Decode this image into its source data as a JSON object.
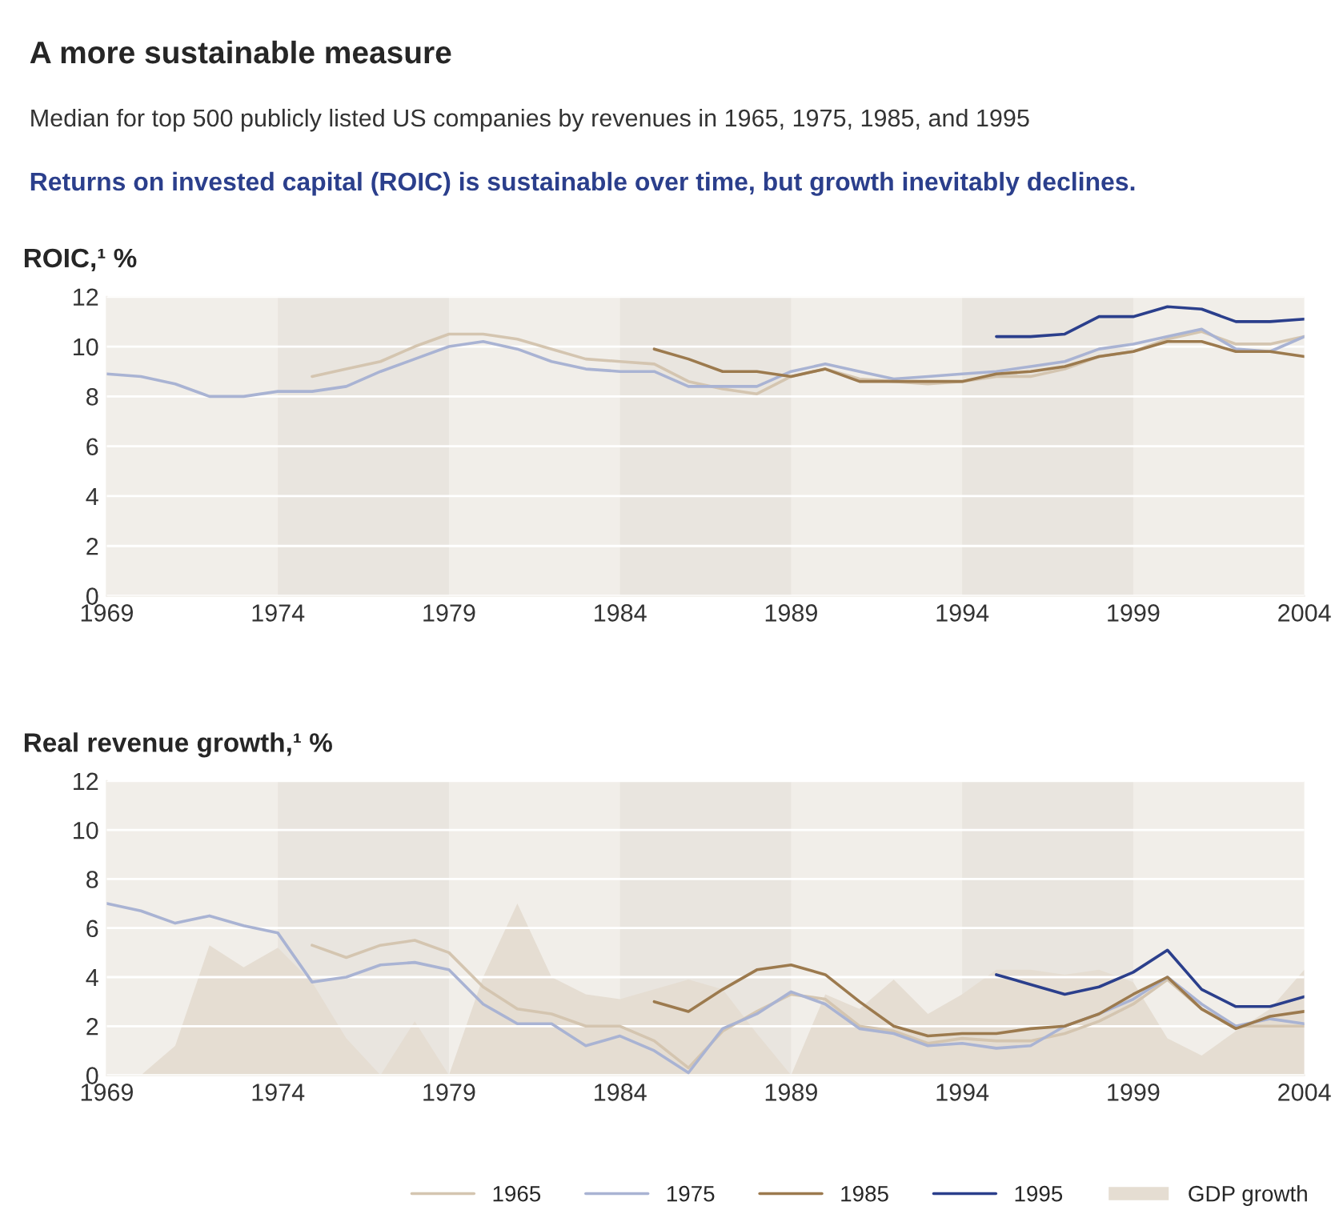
{
  "chart_data": [
    {
      "type": "line",
      "title": "A more sustainable measure",
      "subtitle": "Median for top 500 publicly listed US companies by revenues in 1965, 1975, 1985, and 1995",
      "annotations": [
        "Returns on invested capital (ROIC) is sustainable over time, but growth inevitably declines."
      ],
      "ylabel": "ROIC,¹ %",
      "xlim": [
        1969,
        2004
      ],
      "xticks": [
        1969,
        1974,
        1979,
        1984,
        1989,
        1994,
        1999,
        2004
      ],
      "ylim": [
        0,
        12
      ],
      "yticks": [
        0,
        2,
        4,
        6,
        8,
        10,
        12
      ],
      "grid": "y",
      "legend": "bottom right",
      "bands": [
        {
          "axis": "x",
          "from": 1974,
          "to": 1979,
          "color": "#e9e5df"
        },
        {
          "axis": "x",
          "from": 1984,
          "to": 1989,
          "color": "#e9e5df"
        },
        {
          "axis": "x",
          "from": 1994,
          "to": 1999,
          "color": "#e9e5df"
        }
      ],
      "series": [
        {
          "name": "1965",
          "color": "#d4c5b0",
          "x": [
            1975,
            1976,
            1977,
            1978,
            1979,
            1980,
            1981,
            1982,
            1983,
            1984,
            1985,
            1986,
            1987,
            1988,
            1989,
            1990,
            1991,
            1992,
            1993,
            1994,
            1995,
            1996,
            1997,
            1998,
            1999,
            2000,
            2001,
            2002,
            2003,
            2004
          ],
          "values": [
            8.8,
            9.1,
            9.4,
            10.0,
            10.5,
            10.5,
            10.3,
            9.9,
            9.5,
            9.4,
            9.3,
            8.6,
            8.3,
            8.1,
            8.8,
            9.1,
            8.7,
            8.6,
            8.5,
            8.6,
            8.8,
            8.8,
            9.1,
            9.6,
            9.8,
            10.3,
            10.6,
            10.1,
            10.1,
            10.4
          ]
        },
        {
          "name": "1975",
          "color": "#a9b3d3",
          "x": [
            1969,
            1970,
            1971,
            1972,
            1973,
            1974,
            1975,
            1976,
            1977,
            1978,
            1979,
            1980,
            1981,
            1982,
            1983,
            1984,
            1985,
            1986,
            1987,
            1988,
            1989,
            1990,
            1991,
            1992,
            1993,
            1994,
            1995,
            1996,
            1997,
            1998,
            1999,
            2000,
            2001,
            2002,
            2003,
            2004
          ],
          "values": [
            8.9,
            8.8,
            8.5,
            8.0,
            8.0,
            8.2,
            8.2,
            8.4,
            9.0,
            9.5,
            10.0,
            10.2,
            9.9,
            9.4,
            9.1,
            9.0,
            9.0,
            8.4,
            8.4,
            8.4,
            9.0,
            9.3,
            9.0,
            8.7,
            8.8,
            8.9,
            9.0,
            9.2,
            9.4,
            9.9,
            10.1,
            10.4,
            10.7,
            9.9,
            9.8,
            10.4
          ]
        },
        {
          "name": "1985",
          "color": "#9c7a4e",
          "x": [
            1985,
            1986,
            1987,
            1988,
            1989,
            1990,
            1991,
            1992,
            1993,
            1994,
            1995,
            1996,
            1997,
            1998,
            1999,
            2000,
            2001,
            2002,
            2003,
            2004
          ],
          "values": [
            9.9,
            9.5,
            9.0,
            9.0,
            8.8,
            9.1,
            8.6,
            8.6,
            8.6,
            8.6,
            8.9,
            9.0,
            9.2,
            9.6,
            9.8,
            10.2,
            10.2,
            9.8,
            9.8,
            9.6
          ]
        },
        {
          "name": "1995",
          "color": "#2b3f8c",
          "x": [
            1995,
            1996,
            1997,
            1998,
            1999,
            2000,
            2001,
            2002,
            2003,
            2004
          ],
          "values": [
            10.4,
            10.4,
            10.5,
            11.2,
            11.2,
            11.6,
            11.5,
            11.0,
            11.0,
            11.1
          ]
        }
      ]
    },
    {
      "type": "line",
      "ylabel": "Real revenue growth,¹ %",
      "xlim": [
        1969,
        2004
      ],
      "xticks": [
        1969,
        1974,
        1979,
        1984,
        1989,
        1994,
        1999,
        2004
      ],
      "ylim": [
        0,
        12
      ],
      "yticks": [
        0,
        2,
        4,
        6,
        8,
        10,
        12
      ],
      "grid": "y",
      "legend": "bottom right",
      "bands": [
        {
          "axis": "x",
          "from": 1974,
          "to": 1979,
          "color": "#e9e5df"
        },
        {
          "axis": "x",
          "from": 1984,
          "to": 1989,
          "color": "#e9e5df"
        },
        {
          "axis": "x",
          "from": 1994,
          "to": 1999,
          "color": "#e9e5df"
        }
      ],
      "series": [
        {
          "name": "1965",
          "color": "#d4c5b0",
          "x": [
            1975,
            1976,
            1977,
            1978,
            1979,
            1980,
            1981,
            1982,
            1983,
            1984,
            1985,
            1986,
            1987,
            1988,
            1989,
            1990,
            1991,
            1992,
            1993,
            1994,
            1995,
            1996,
            1997,
            1998,
            1999,
            2000,
            2001,
            2002,
            2003,
            2004
          ],
          "values": [
            5.3,
            4.8,
            5.3,
            5.5,
            5.0,
            3.6,
            2.7,
            2.5,
            2.0,
            2.0,
            1.4,
            0.3,
            1.8,
            2.6,
            3.3,
            3.1,
            2.0,
            1.8,
            1.3,
            1.5,
            1.4,
            1.4,
            1.7,
            2.2,
            2.9,
            3.9,
            2.7,
            2.0,
            2.0,
            2.0
          ]
        },
        {
          "name": "1975",
          "color": "#a9b3d3",
          "x": [
            1969,
            1970,
            1971,
            1972,
            1973,
            1974,
            1975,
            1976,
            1977,
            1978,
            1979,
            1980,
            1981,
            1982,
            1983,
            1984,
            1985,
            1986,
            1987,
            1988,
            1989,
            1990,
            1991,
            1992,
            1993,
            1994,
            1995,
            1996,
            1997,
            1998,
            1999,
            2000,
            2001,
            2002,
            2003,
            2004
          ],
          "values": [
            7.0,
            6.7,
            6.2,
            6.5,
            6.1,
            5.8,
            3.8,
            4.0,
            4.5,
            4.6,
            4.3,
            2.9,
            2.1,
            2.1,
            1.2,
            1.6,
            1.0,
            0.1,
            1.9,
            2.5,
            3.4,
            2.9,
            1.9,
            1.7,
            1.2,
            1.3,
            1.1,
            1.2,
            2.0,
            2.5,
            3.1,
            4.0,
            2.9,
            2.0,
            2.3,
            2.1
          ]
        },
        {
          "name": "1985",
          "color": "#9c7a4e",
          "x": [
            1985,
            1986,
            1987,
            1988,
            1989,
            1990,
            1991,
            1992,
            1993,
            1994,
            1995,
            1996,
            1997,
            1998,
            1999,
            2000,
            2001,
            2002,
            2003,
            2004
          ],
          "values": [
            3.0,
            2.6,
            3.5,
            4.3,
            4.5,
            4.1,
            3.0,
            2.0,
            1.6,
            1.7,
            1.7,
            1.9,
            2.0,
            2.5,
            3.3,
            4.0,
            2.7,
            1.9,
            2.4,
            2.6
          ]
        },
        {
          "name": "1995",
          "color": "#2b3f8c",
          "x": [
            1995,
            1996,
            1997,
            1998,
            1999,
            2000,
            2001,
            2002,
            2003,
            2004
          ],
          "values": [
            4.1,
            3.7,
            3.3,
            3.6,
            4.2,
            5.1,
            3.5,
            2.8,
            2.8,
            3.2
          ]
        },
        {
          "name": "GDP growth",
          "type": "area",
          "color": "#e5ddd2",
          "x": [
            1969,
            1970,
            1971,
            1972,
            1973,
            1974,
            1975,
            1976,
            1977,
            1978,
            1979,
            1980,
            1981,
            1982,
            1983,
            1984,
            1985,
            1986,
            1987,
            1988,
            1989,
            1990,
            1991,
            1992,
            1993,
            1994,
            1995,
            1996,
            1997,
            1998,
            1999,
            2000,
            2001,
            2002,
            2003,
            2004
          ],
          "values": [
            0,
            0,
            1.2,
            5.3,
            4.4,
            5.2,
            3.8,
            1.5,
            0,
            2.2,
            0,
            4.0,
            7.0,
            4.0,
            3.3,
            3.1,
            3.5,
            3.9,
            3.5,
            1.7,
            0,
            3.3,
            2.7,
            3.9,
            2.5,
            3.3,
            4.3,
            4.3,
            4.1,
            4.3,
            3.8,
            1.5,
            0.8,
            1.8,
            2.7,
            4.3
          ]
        }
      ]
    }
  ]
}
